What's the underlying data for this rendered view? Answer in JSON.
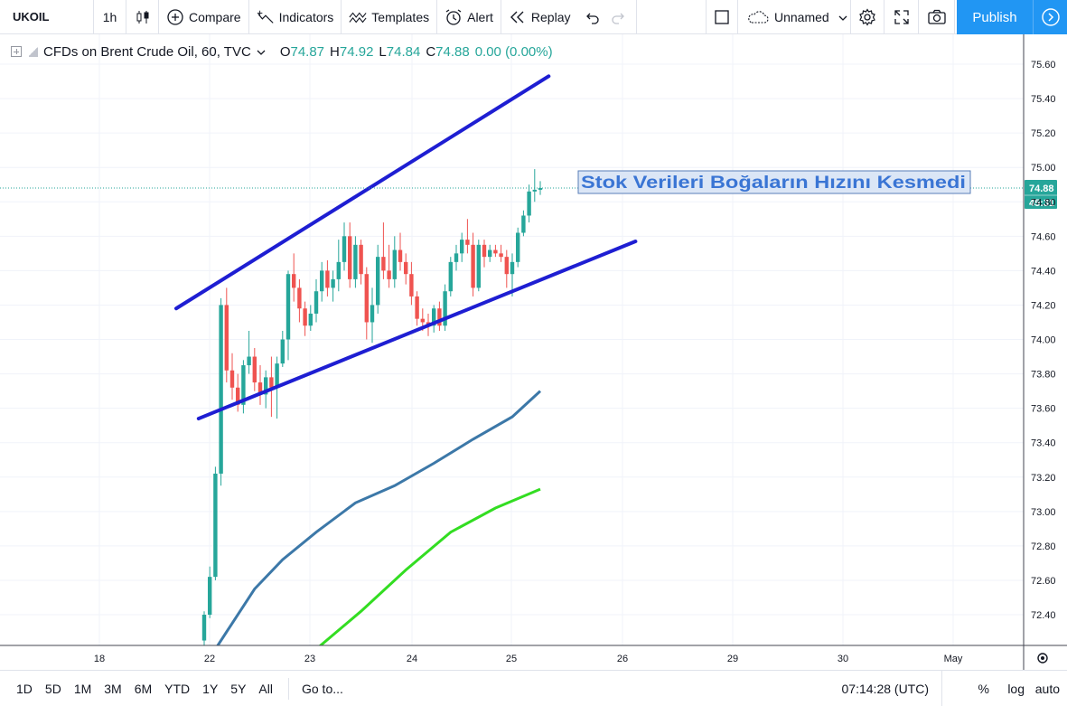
{
  "toolbar": {
    "symbol": "UKOIL",
    "interval": "1h",
    "compare": "Compare",
    "indicators": "Indicators",
    "templates": "Templates",
    "alert": "Alert",
    "replay": "Replay",
    "layout_name": "Unnamed",
    "publish": "Publish"
  },
  "legend": {
    "title": "CFDs on Brent Crude Oil, 60, TVC",
    "open_label": "O",
    "open": "74.87",
    "high_label": "H",
    "high": "74.92",
    "low_label": "L",
    "low": "74.84",
    "close_label": "C",
    "close": "74.88",
    "change": "0.00 (0.00%)"
  },
  "price_tag": {
    "price": "74.88",
    "countdown": "45:31"
  },
  "annotation": "Stok Verileri Boğaların Hızını Kesmedi",
  "colors": {
    "up": "#26a69a",
    "down": "#ef5350",
    "trendline": "#1e1ed2",
    "ma_slow": "#3c78a8",
    "ma_fast": "#33dd22",
    "accent": "#2196f3"
  },
  "chart_data": {
    "type": "candlestick",
    "title": "CFDs on Brent Crude Oil, 60, TVC",
    "y_ticks": [
      "75.60",
      "75.40",
      "75.20",
      "75.00",
      "74.80",
      "74.60",
      "74.40",
      "74.20",
      "74.00",
      "73.80",
      "73.60",
      "73.40",
      "73.20",
      "73.00",
      "72.80",
      "72.60",
      "72.40"
    ],
    "x_ticks": [
      "18",
      "22",
      "23",
      "24",
      "25",
      "26",
      "29",
      "30",
      "May"
    ],
    "ylim": [
      72.26,
      75.72
    ],
    "last_price": 74.88,
    "candles": [
      {
        "o": 72.25,
        "h": 72.42,
        "l": 72.2,
        "c": 72.4
      },
      {
        "o": 72.4,
        "h": 72.68,
        "l": 72.38,
        "c": 72.62
      },
      {
        "o": 72.62,
        "h": 73.26,
        "l": 72.6,
        "c": 73.22
      },
      {
        "o": 73.22,
        "h": 74.24,
        "l": 73.15,
        "c": 74.2
      },
      {
        "o": 74.2,
        "h": 74.3,
        "l": 73.75,
        "c": 73.82
      },
      {
        "o": 73.82,
        "h": 73.92,
        "l": 73.65,
        "c": 73.72
      },
      {
        "o": 73.72,
        "h": 73.8,
        "l": 73.58,
        "c": 73.62
      },
      {
        "o": 73.62,
        "h": 73.88,
        "l": 73.57,
        "c": 73.85
      },
      {
        "o": 73.85,
        "h": 74.05,
        "l": 73.8,
        "c": 73.9
      },
      {
        "o": 73.9,
        "h": 73.95,
        "l": 73.7,
        "c": 73.75
      },
      {
        "o": 73.75,
        "h": 73.85,
        "l": 73.62,
        "c": 73.68
      },
      {
        "o": 73.68,
        "h": 73.82,
        "l": 73.6,
        "c": 73.78
      },
      {
        "o": 73.78,
        "h": 73.9,
        "l": 73.55,
        "c": 73.72
      },
      {
        "o": 73.72,
        "h": 73.9,
        "l": 73.54,
        "c": 73.86
      },
      {
        "o": 73.86,
        "h": 74.05,
        "l": 73.84,
        "c": 74.0
      },
      {
        "o": 74.0,
        "h": 74.4,
        "l": 73.88,
        "c": 74.38
      },
      {
        "o": 74.38,
        "h": 74.5,
        "l": 74.22,
        "c": 74.3
      },
      {
        "o": 74.3,
        "h": 74.35,
        "l": 74.1,
        "c": 74.18
      },
      {
        "o": 74.18,
        "h": 74.22,
        "l": 74.02,
        "c": 74.08
      },
      {
        "o": 74.08,
        "h": 74.2,
        "l": 74.05,
        "c": 74.15
      },
      {
        "o": 74.15,
        "h": 74.35,
        "l": 74.1,
        "c": 74.28
      },
      {
        "o": 74.28,
        "h": 74.45,
        "l": 74.22,
        "c": 74.4
      },
      {
        "o": 74.4,
        "h": 74.46,
        "l": 74.25,
        "c": 74.3
      },
      {
        "o": 74.3,
        "h": 74.4,
        "l": 74.22,
        "c": 74.35
      },
      {
        "o": 74.35,
        "h": 74.58,
        "l": 74.28,
        "c": 74.45
      },
      {
        "o": 74.45,
        "h": 74.68,
        "l": 74.4,
        "c": 74.6
      },
      {
        "o": 74.6,
        "h": 74.68,
        "l": 74.3,
        "c": 74.35
      },
      {
        "o": 74.35,
        "h": 74.6,
        "l": 74.3,
        "c": 74.55
      },
      {
        "o": 74.55,
        "h": 74.58,
        "l": 74.32,
        "c": 74.38
      },
      {
        "o": 74.38,
        "h": 74.42,
        "l": 74.0,
        "c": 74.1
      },
      {
        "o": 74.1,
        "h": 74.3,
        "l": 73.98,
        "c": 74.2
      },
      {
        "o": 74.2,
        "h": 74.55,
        "l": 74.15,
        "c": 74.48
      },
      {
        "o": 74.48,
        "h": 74.68,
        "l": 74.35,
        "c": 74.4
      },
      {
        "o": 74.4,
        "h": 74.55,
        "l": 74.3,
        "c": 74.35
      },
      {
        "o": 74.35,
        "h": 74.6,
        "l": 74.3,
        "c": 74.52
      },
      {
        "o": 74.52,
        "h": 74.62,
        "l": 74.4,
        "c": 74.45
      },
      {
        "o": 74.45,
        "h": 74.5,
        "l": 74.32,
        "c": 74.38
      },
      {
        "o": 74.38,
        "h": 74.45,
        "l": 74.2,
        "c": 74.25
      },
      {
        "o": 74.25,
        "h": 74.28,
        "l": 74.08,
        "c": 74.12
      },
      {
        "o": 74.12,
        "h": 74.18,
        "l": 74.05,
        "c": 74.1
      },
      {
        "o": 74.1,
        "h": 74.15,
        "l": 74.02,
        "c": 74.08
      },
      {
        "o": 74.08,
        "h": 74.2,
        "l": 74.04,
        "c": 74.18
      },
      {
        "o": 74.18,
        "h": 74.22,
        "l": 74.05,
        "c": 74.08
      },
      {
        "o": 74.08,
        "h": 74.32,
        "l": 74.05,
        "c": 74.28
      },
      {
        "o": 74.28,
        "h": 74.48,
        "l": 74.25,
        "c": 74.45
      },
      {
        "o": 74.45,
        "h": 74.55,
        "l": 74.4,
        "c": 74.5
      },
      {
        "o": 74.5,
        "h": 74.62,
        "l": 74.45,
        "c": 74.58
      },
      {
        "o": 74.58,
        "h": 74.7,
        "l": 74.5,
        "c": 74.55
      },
      {
        "o": 74.55,
        "h": 74.62,
        "l": 74.25,
        "c": 74.3
      },
      {
        "o": 74.3,
        "h": 74.58,
        "l": 74.28,
        "c": 74.55
      },
      {
        "o": 74.55,
        "h": 74.58,
        "l": 74.42,
        "c": 74.48
      },
      {
        "o": 74.48,
        "h": 74.55,
        "l": 74.45,
        "c": 74.52
      },
      {
        "o": 74.52,
        "h": 74.55,
        "l": 74.48,
        "c": 74.5
      },
      {
        "o": 74.5,
        "h": 74.55,
        "l": 74.45,
        "c": 74.48
      },
      {
        "o": 74.48,
        "h": 74.52,
        "l": 74.3,
        "c": 74.38
      },
      {
        "o": 74.38,
        "h": 74.5,
        "l": 74.25,
        "c": 74.45
      },
      {
        "o": 74.45,
        "h": 74.65,
        "l": 74.42,
        "c": 74.62
      },
      {
        "o": 74.62,
        "h": 74.75,
        "l": 74.6,
        "c": 74.72
      },
      {
        "o": 74.72,
        "h": 74.9,
        "l": 74.68,
        "c": 74.86
      },
      {
        "o": 74.86,
        "h": 74.99,
        "l": 74.8,
        "c": 74.87
      },
      {
        "o": 74.87,
        "h": 74.92,
        "l": 74.84,
        "c": 74.88
      }
    ],
    "ma_slow": [
      [
        0.0,
        72.1
      ],
      [
        4.0,
        72.3
      ],
      [
        9.0,
        72.55
      ],
      [
        14.0,
        72.72
      ],
      [
        20.0,
        72.88
      ],
      [
        27.0,
        73.05
      ],
      [
        34.0,
        73.15
      ],
      [
        41.0,
        73.28
      ],
      [
        48.0,
        73.42
      ],
      [
        55.0,
        73.55
      ],
      [
        60.0,
        73.7
      ]
    ],
    "ma_fast": [
      [
        20.0,
        72.2
      ],
      [
        28.0,
        72.42
      ],
      [
        36.0,
        72.66
      ],
      [
        44.0,
        72.88
      ],
      [
        52.0,
        73.02
      ],
      [
        60.0,
        73.13
      ]
    ],
    "trendlines": [
      {
        "x1": -5.0,
        "y1": 74.18,
        "x2": 61.5,
        "y2": 75.53
      },
      {
        "x1": -1.0,
        "y1": 73.54,
        "x2": 77.0,
        "y2": 74.57
      }
    ]
  },
  "bottom": {
    "ranges": [
      "1D",
      "5D",
      "1M",
      "3M",
      "6M",
      "YTD",
      "1Y",
      "5Y",
      "All"
    ],
    "goto": "Go to...",
    "clock": "07:14:28 (UTC)",
    "percent": "%",
    "log": "log",
    "auto": "auto"
  }
}
